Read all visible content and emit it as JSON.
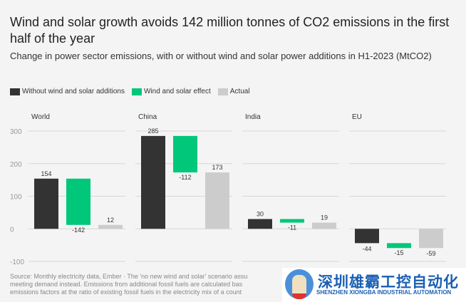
{
  "title": "Wind and solar growth avoids 142 million tonnes of CO2 emissions in the first half of the year",
  "subtitle": "Change in power sector emissions, with or without wind and solar power additions in H1-2023 (MtCO2)",
  "legend": [
    {
      "label": "Without wind and solar additions",
      "color": "#333333"
    },
    {
      "label": "Wind and solar effect",
      "color": "#00c77a"
    },
    {
      "label": "Actual",
      "color": "#cccccc"
    }
  ],
  "source": [
    "Source: Monthly electricity data, Ember · The 'no new wind and solar' scenario assu",
    "meeting demand instead. Emissions from additional fossil fuels are calculated bas",
    "emissions factors at the ratio of existing fossil fuels in the electricity mix of a count"
  ],
  "watermark": {
    "cn": "深圳雄霸工控自动化",
    "en": "SHENZHEN XIONGBA INDUSTRIAL AUTOMATION"
  },
  "chart_data": {
    "type": "bar",
    "subtype": "waterfall-small-multiples",
    "ylim": [
      -100,
      300
    ],
    "yticks": [
      "300",
      "200",
      "100",
      "0",
      "-100"
    ],
    "ytick_values": [
      300,
      200,
      100,
      0,
      -100
    ],
    "grid": true,
    "legend_placement": "top-left",
    "panels": [
      {
        "name": "World",
        "without": 154,
        "effect": -142,
        "actual": 12,
        "labels": [
          "154",
          "-142",
          "12"
        ]
      },
      {
        "name": "China",
        "without": 285,
        "effect": -112,
        "actual": 173,
        "labels": [
          "285",
          "-112",
          "173"
        ]
      },
      {
        "name": "India",
        "without": 30,
        "effect": -11,
        "actual": 19,
        "labels": [
          "30",
          "-11",
          "19"
        ]
      },
      {
        "name": "EU",
        "without": -44,
        "effect": -15,
        "actual": -59,
        "labels": [
          "-44",
          "-15",
          "-59"
        ]
      }
    ]
  }
}
